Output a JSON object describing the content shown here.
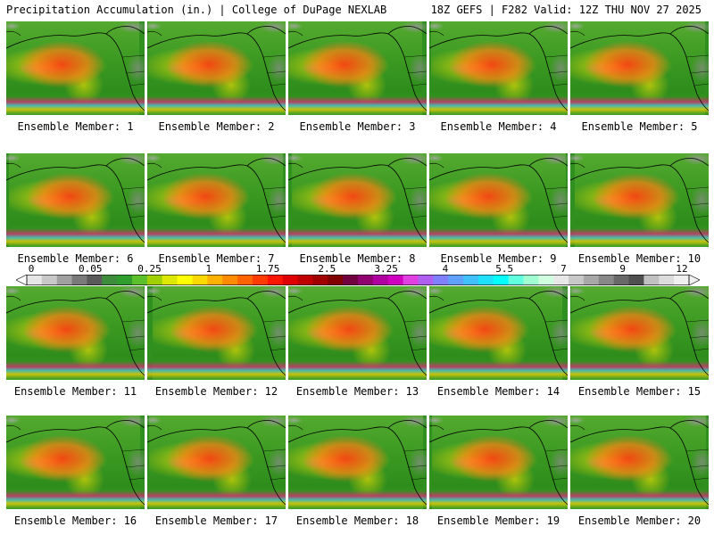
{
  "header": {
    "left_title": "Precipitation Accumulation (in.) | College of DuPage NEXLAB",
    "right_title": "18Z GEFS | F282 Valid: 12Z THU NOV 27 2025"
  },
  "panels": [
    {
      "label": "Ensemble Member: 1"
    },
    {
      "label": "Ensemble Member: 2"
    },
    {
      "label": "Ensemble Member: 3"
    },
    {
      "label": "Ensemble Member: 4"
    },
    {
      "label": "Ensemble Member: 5"
    },
    {
      "label": "Ensemble Member: 6"
    },
    {
      "label": "Ensemble Member: 7"
    },
    {
      "label": "Ensemble Member: 8"
    },
    {
      "label": "Ensemble Member: 9"
    },
    {
      "label": "Ensemble Member: 10"
    },
    {
      "label": "Ensemble Member: 11"
    },
    {
      "label": "Ensemble Member: 12"
    },
    {
      "label": "Ensemble Member: 13"
    },
    {
      "label": "Ensemble Member: 14"
    },
    {
      "label": "Ensemble Member: 15"
    },
    {
      "label": "Ensemble Member: 16"
    },
    {
      "label": "Ensemble Member: 17"
    },
    {
      "label": "Ensemble Member: 18"
    },
    {
      "label": "Ensemble Member: 19"
    },
    {
      "label": "Ensemble Member: 20"
    }
  ],
  "legend": {
    "tick_labels": [
      "0",
      "0.05",
      "0.25",
      "1",
      "1.75",
      "2.5",
      "3.25",
      "4",
      "5.5",
      "7",
      "9",
      "12"
    ],
    "colors": [
      "#e6e6e6",
      "#c8c8c8",
      "#a0a0a0",
      "#7a7a7a",
      "#5a5a5a",
      "#3c8c3c",
      "#2f9e2f",
      "#5cc02c",
      "#a0d000",
      "#dde800",
      "#ffff00",
      "#ffd800",
      "#ffb000",
      "#ff8c00",
      "#ff6400",
      "#ff3c00",
      "#ff1400",
      "#e00000",
      "#c00000",
      "#a00000",
      "#800000",
      "#700040",
      "#900070",
      "#b000a0",
      "#d000c0",
      "#e040e0",
      "#b060f0",
      "#8080ff",
      "#60a0ff",
      "#40c0ff",
      "#20e0ff",
      "#00ffff",
      "#60ffe0",
      "#a0ffd0",
      "#d0ffe0",
      "#e8e8e8",
      "#c8c8c8",
      "#a8a8a8",
      "#888888",
      "#686868",
      "#505050",
      "#c0c0c0",
      "#dcdcdc",
      "#f0f0f0"
    ]
  }
}
